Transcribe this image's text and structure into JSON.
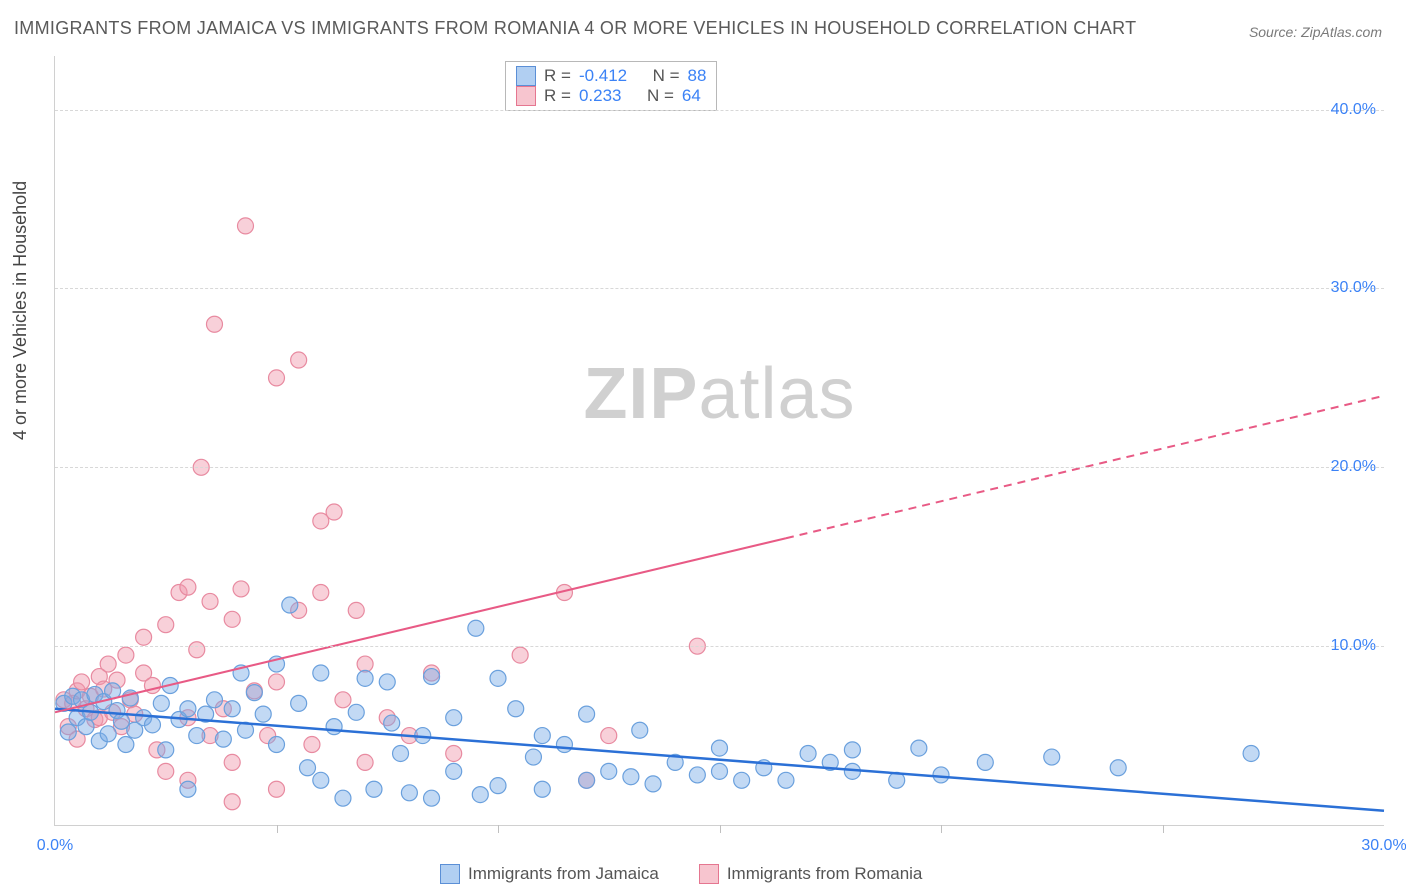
{
  "title": "IMMIGRANTS FROM JAMAICA VS IMMIGRANTS FROM ROMANIA 4 OR MORE VEHICLES IN HOUSEHOLD CORRELATION CHART",
  "source": "Source: ZipAtlas.com",
  "ylabel": "4 or more Vehicles in Household",
  "watermark_a": "ZIP",
  "watermark_b": "atlas",
  "xlim": [
    0,
    30
  ],
  "ylim": [
    0,
    43
  ],
  "xtick_labels": [
    "0.0%",
    "30.0%"
  ],
  "xtick_positions": [
    0,
    30
  ],
  "xtick_minor": [
    5,
    10,
    15,
    20,
    25
  ],
  "ytick_labels": [
    "10.0%",
    "20.0%",
    "30.0%",
    "40.0%"
  ],
  "ytick_positions": [
    10,
    20,
    30,
    40
  ],
  "grid_color": "#d8d8d8",
  "axis_color": "#d0d0d0",
  "tick_label_color": "#3b82f6",
  "series": {
    "jamaica": {
      "label": "Immigrants from Jamaica",
      "color_fill": "rgba(120,170,230,0.45)",
      "color_stroke": "#6aa0dd",
      "marker_radius": 8,
      "R": "-0.412",
      "N": "88",
      "trend": {
        "x1": 0,
        "y1": 6.5,
        "x2": 30,
        "y2": 0.8,
        "color": "#2b70d6",
        "width": 2.5,
        "dash_after_x": null
      },
      "points": [
        [
          0.2,
          6.8
        ],
        [
          0.3,
          5.2
        ],
        [
          0.4,
          7.2
        ],
        [
          0.5,
          6.0
        ],
        [
          0.6,
          7.0
        ],
        [
          0.7,
          5.5
        ],
        [
          0.8,
          6.3
        ],
        [
          0.9,
          7.3
        ],
        [
          1.0,
          4.7
        ],
        [
          1.1,
          6.9
        ],
        [
          1.2,
          5.1
        ],
        [
          1.3,
          7.5
        ],
        [
          1.4,
          6.4
        ],
        [
          1.5,
          5.8
        ],
        [
          1.6,
          4.5
        ],
        [
          1.7,
          7.1
        ],
        [
          1.8,
          5.3
        ],
        [
          2.0,
          6.0
        ],
        [
          2.2,
          5.6
        ],
        [
          2.4,
          6.8
        ],
        [
          2.5,
          4.2
        ],
        [
          2.6,
          7.8
        ],
        [
          2.8,
          5.9
        ],
        [
          3.0,
          6.5
        ],
        [
          3.0,
          2.0
        ],
        [
          3.2,
          5.0
        ],
        [
          3.4,
          6.2
        ],
        [
          3.6,
          7.0
        ],
        [
          3.8,
          4.8
        ],
        [
          4.0,
          6.5
        ],
        [
          4.2,
          8.5
        ],
        [
          4.3,
          5.3
        ],
        [
          4.5,
          7.4
        ],
        [
          4.7,
          6.2
        ],
        [
          5.0,
          9.0
        ],
        [
          5.0,
          4.5
        ],
        [
          5.3,
          12.3
        ],
        [
          5.5,
          6.8
        ],
        [
          5.7,
          3.2
        ],
        [
          6.0,
          2.5
        ],
        [
          6.0,
          8.5
        ],
        [
          6.3,
          5.5
        ],
        [
          6.5,
          1.5
        ],
        [
          6.8,
          6.3
        ],
        [
          7.0,
          8.2
        ],
        [
          7.2,
          2.0
        ],
        [
          7.5,
          8.0
        ],
        [
          7.6,
          5.7
        ],
        [
          7.8,
          4.0
        ],
        [
          8.0,
          1.8
        ],
        [
          8.3,
          5.0
        ],
        [
          8.5,
          8.3
        ],
        [
          8.5,
          1.5
        ],
        [
          9.0,
          6.0
        ],
        [
          9.0,
          3.0
        ],
        [
          9.5,
          11.0
        ],
        [
          9.6,
          1.7
        ],
        [
          10.0,
          8.2
        ],
        [
          10.0,
          2.2
        ],
        [
          10.4,
          6.5
        ],
        [
          10.8,
          3.8
        ],
        [
          11.0,
          5.0
        ],
        [
          11.0,
          2.0
        ],
        [
          11.5,
          4.5
        ],
        [
          12.0,
          6.2
        ],
        [
          12.0,
          2.5
        ],
        [
          12.5,
          3.0
        ],
        [
          13.0,
          2.7
        ],
        [
          13.2,
          5.3
        ],
        [
          13.5,
          2.3
        ],
        [
          14.0,
          3.5
        ],
        [
          14.5,
          2.8
        ],
        [
          15.0,
          3.0
        ],
        [
          15.0,
          4.3
        ],
        [
          15.5,
          2.5
        ],
        [
          16.0,
          3.2
        ],
        [
          16.5,
          2.5
        ],
        [
          17.0,
          4.0
        ],
        [
          17.5,
          3.5
        ],
        [
          18.0,
          3.0
        ],
        [
          18.0,
          4.2
        ],
        [
          19.0,
          2.5
        ],
        [
          19.5,
          4.3
        ],
        [
          20.0,
          2.8
        ],
        [
          21.0,
          3.5
        ],
        [
          22.5,
          3.8
        ],
        [
          24.0,
          3.2
        ],
        [
          27.0,
          4.0
        ]
      ]
    },
    "romania": {
      "label": "Immigrants from Romania",
      "color_fill": "rgba(240,150,170,0.45)",
      "color_stroke": "#e88aa0",
      "marker_radius": 8,
      "R": "0.233",
      "N": "64",
      "trend": {
        "x1": 0,
        "y1": 6.3,
        "x2": 30,
        "y2": 24.0,
        "color": "#e85a85",
        "width": 2,
        "dash_after_x": 16.5
      },
      "points": [
        [
          0.2,
          7.0
        ],
        [
          0.3,
          5.5
        ],
        [
          0.4,
          6.8
        ],
        [
          0.5,
          7.5
        ],
        [
          0.5,
          4.8
        ],
        [
          0.6,
          8.0
        ],
        [
          0.7,
          6.5
        ],
        [
          0.8,
          7.2
        ],
        [
          0.9,
          5.9
        ],
        [
          1.0,
          8.3
        ],
        [
          1.0,
          6.0
        ],
        [
          1.1,
          7.6
        ],
        [
          1.2,
          9.0
        ],
        [
          1.3,
          6.3
        ],
        [
          1.4,
          8.1
        ],
        [
          1.5,
          5.5
        ],
        [
          1.6,
          9.5
        ],
        [
          1.7,
          7.0
        ],
        [
          1.8,
          6.2
        ],
        [
          2.0,
          8.5
        ],
        [
          2.0,
          10.5
        ],
        [
          2.2,
          7.8
        ],
        [
          2.3,
          4.2
        ],
        [
          2.5,
          11.2
        ],
        [
          2.5,
          3.0
        ],
        [
          2.8,
          13.0
        ],
        [
          3.0,
          13.3
        ],
        [
          3.0,
          6.0
        ],
        [
          3.0,
          2.5
        ],
        [
          3.2,
          9.8
        ],
        [
          3.3,
          20.0
        ],
        [
          3.5,
          12.5
        ],
        [
          3.5,
          5.0
        ],
        [
          3.6,
          28.0
        ],
        [
          3.8,
          6.5
        ],
        [
          4.0,
          11.5
        ],
        [
          4.0,
          3.5
        ],
        [
          4.0,
          1.3
        ],
        [
          4.2,
          13.2
        ],
        [
          4.3,
          33.5
        ],
        [
          4.5,
          7.5
        ],
        [
          4.8,
          5.0
        ],
        [
          5.0,
          25.0
        ],
        [
          5.0,
          8.0
        ],
        [
          5.0,
          2.0
        ],
        [
          5.5,
          26.0
        ],
        [
          5.5,
          12.0
        ],
        [
          5.8,
          4.5
        ],
        [
          6.0,
          17.0
        ],
        [
          6.0,
          13.0
        ],
        [
          6.3,
          17.5
        ],
        [
          6.5,
          7.0
        ],
        [
          6.8,
          12.0
        ],
        [
          7.0,
          9.0
        ],
        [
          7.0,
          3.5
        ],
        [
          7.5,
          6.0
        ],
        [
          8.0,
          5.0
        ],
        [
          8.5,
          8.5
        ],
        [
          9.0,
          4.0
        ],
        [
          10.5,
          9.5
        ],
        [
          11.5,
          13.0
        ],
        [
          12.0,
          2.5
        ],
        [
          14.5,
          10.0
        ],
        [
          12.5,
          5.0
        ]
      ]
    }
  },
  "legend_top": {
    "R_label": "R =",
    "N_label": "N ="
  }
}
